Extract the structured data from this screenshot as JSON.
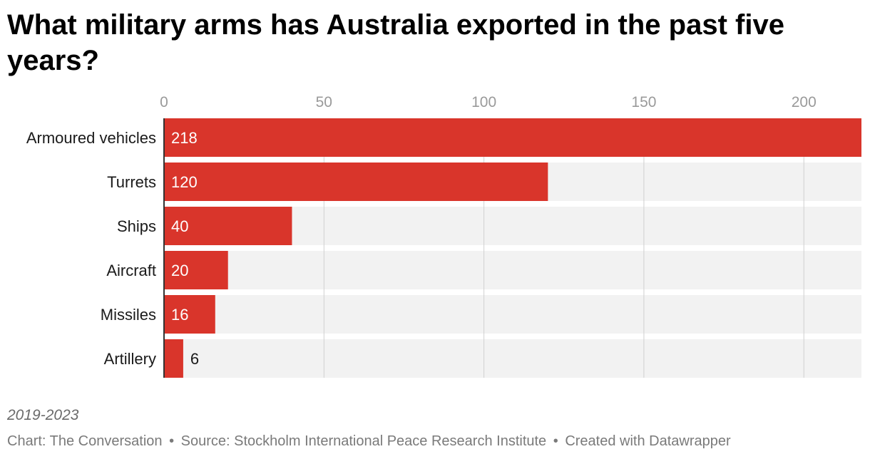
{
  "title": "What military arms has Australia exported in the past five years?",
  "notes": "2019-2023",
  "footer": {
    "chart_credit": "Chart: The Conversation",
    "source": "Source: Stockholm International Peace Research Institute",
    "created_with": "Created with Datawrapper",
    "separator": "•"
  },
  "colors": {
    "bar": "#d9352b",
    "track": "#f2f2f2",
    "grid": "#d0d0d0",
    "axis": "#333333",
    "tick_text": "#9a9a9a"
  },
  "chart_data": {
    "type": "bar",
    "orientation": "horizontal",
    "categories": [
      "Armoured vehicles",
      "Turrets",
      "Ships",
      "Aircraft",
      "Missiles",
      "Artillery"
    ],
    "values": [
      218,
      120,
      40,
      20,
      16,
      6
    ],
    "value_labels": [
      "218",
      "120",
      "40",
      "20",
      "16",
      "6"
    ],
    "xticks": [
      0,
      50,
      100,
      150,
      200
    ],
    "xlim": [
      0,
      218
    ],
    "grid": true,
    "title": "What military arms has Australia exported in the past five years?",
    "xlabel": "",
    "ylabel": ""
  }
}
